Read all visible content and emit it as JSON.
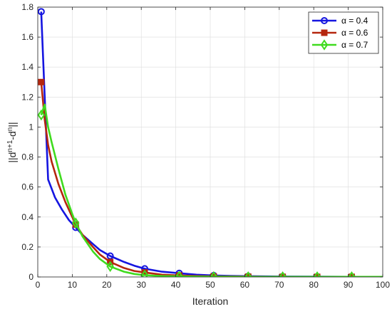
{
  "chart_data": {
    "type": "line",
    "title": "",
    "xlabel": "Iteration",
    "ylabel_parts": {
      "base1": "||d",
      "sup1": "n+1",
      "mid": "-d",
      "sup2": "n",
      "end": "||"
    },
    "xlim": [
      0,
      100
    ],
    "ylim": [
      0,
      1.8
    ],
    "xticks": [
      0,
      10,
      20,
      30,
      40,
      50,
      60,
      70,
      80,
      90,
      100
    ],
    "yticks": [
      0,
      0.2,
      0.4,
      0.6,
      0.8,
      1,
      1.2,
      1.4,
      1.6,
      1.8
    ],
    "grid": true,
    "legend_position": "top-right",
    "series": [
      {
        "name": "α = 0.4",
        "color": "#1515e0",
        "marker": "circle",
        "x": [
          1,
          3,
          5,
          7,
          9,
          11,
          13,
          16,
          18,
          21,
          25,
          28,
          31,
          36,
          41,
          46,
          51,
          56,
          61,
          71,
          81,
          91,
          100
        ],
        "y": [
          1.77,
          0.65,
          0.53,
          0.45,
          0.38,
          0.33,
          0.28,
          0.22,
          0.18,
          0.14,
          0.1,
          0.075,
          0.055,
          0.035,
          0.025,
          0.015,
          0.01,
          0.007,
          0.005,
          0.003,
          0.002,
          0.001,
          0.001
        ],
        "marker_x": [
          1,
          11,
          21,
          31,
          41,
          51,
          61,
          71,
          81,
          91
        ]
      },
      {
        "name": "α = 0.6",
        "color": "#b5260e",
        "marker": "square",
        "x": [
          1,
          2,
          3,
          4,
          6,
          8,
          10,
          11,
          13,
          16,
          18,
          21,
          25,
          28,
          31,
          36,
          41,
          46,
          51,
          61,
          71,
          81,
          91,
          100
        ],
        "y": [
          1.3,
          1.05,
          0.88,
          0.77,
          0.62,
          0.5,
          0.4,
          0.35,
          0.28,
          0.2,
          0.15,
          0.1,
          0.06,
          0.04,
          0.03,
          0.015,
          0.01,
          0.006,
          0.004,
          0.002,
          0.001,
          0.001,
          0.001,
          0.001
        ],
        "marker_x": [
          1,
          11,
          21,
          31,
          41,
          51,
          61,
          71,
          81,
          91
        ]
      },
      {
        "name": "α = 0.7",
        "color": "#3fdb1e",
        "marker": "diamond",
        "x": [
          1,
          2,
          3,
          4,
          6,
          8,
          10,
          11,
          13,
          16,
          18,
          21,
          25,
          28,
          31,
          36,
          41,
          46,
          51,
          61,
          71,
          81,
          91,
          100
        ],
        "y": [
          1.08,
          1.15,
          1.0,
          0.9,
          0.72,
          0.55,
          0.42,
          0.36,
          0.27,
          0.17,
          0.12,
          0.07,
          0.035,
          0.02,
          0.012,
          0.006,
          0.004,
          0.003,
          0.002,
          0.001,
          0.001,
          0.001,
          0.001,
          0.001
        ],
        "marker_x": [
          1,
          11,
          21,
          31,
          41,
          51,
          61,
          71,
          81,
          91
        ]
      }
    ]
  }
}
